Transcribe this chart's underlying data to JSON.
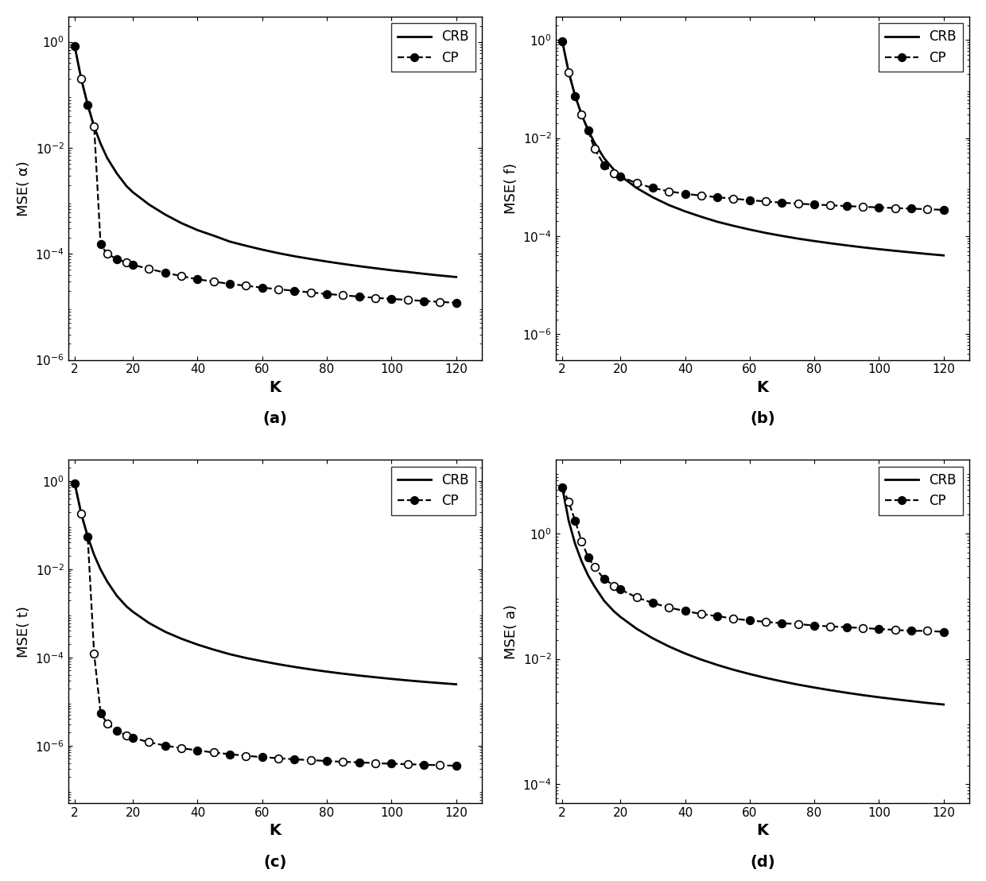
{
  "K_values": [
    2,
    4,
    6,
    8,
    10,
    12,
    15,
    18,
    20,
    25,
    30,
    35,
    40,
    45,
    50,
    55,
    60,
    65,
    70,
    75,
    80,
    85,
    90,
    95,
    100,
    105,
    110,
    115,
    120
  ],
  "subplots": [
    {
      "ylabel": "MSE( α)",
      "label": "(a)",
      "ylim_lo": 1e-06,
      "ylim_hi": 3.0,
      "yticks": [
        1e-06,
        0.0001,
        0.01,
        1.0
      ],
      "crb": [
        0.82,
        0.2,
        0.065,
        0.025,
        0.012,
        0.0065,
        0.0033,
        0.0019,
        0.00145,
        0.00085,
        0.00055,
        0.00038,
        0.00028,
        0.00022,
        0.00017,
        0.000142,
        0.00012,
        0.000103,
        9e-05,
        8e-05,
        7.15e-05,
        6.45e-05,
        5.85e-05,
        5.35e-05,
        4.9e-05,
        4.55e-05,
        4.2e-05,
        3.9e-05,
        3.65e-05
      ],
      "cp": [
        0.82,
        0.2,
        0.065,
        0.025,
        0.00015,
        0.0001,
        8e-05,
        6.8e-05,
        6.2e-05,
        5.2e-05,
        4.4e-05,
        3.8e-05,
        3.3e-05,
        3e-05,
        2.7e-05,
        2.5e-05,
        2.3e-05,
        2.15e-05,
        2e-05,
        1.87e-05,
        1.75e-05,
        1.65e-05,
        1.56e-05,
        1.48e-05,
        1.41e-05,
        1.35e-05,
        1.29e-05,
        1.24e-05,
        1.19e-05
      ]
    },
    {
      "ylabel": "MSE( f)",
      "label": "(b)",
      "ylim_lo": 3e-07,
      "ylim_hi": 3.0,
      "yticks": [
        1e-06,
        0.0001,
        0.01,
        1.0
      ],
      "crb": [
        0.95,
        0.22,
        0.072,
        0.03,
        0.0145,
        0.008,
        0.00385,
        0.00225,
        0.0017,
        0.00096,
        0.00062,
        0.00043,
        0.00032,
        0.000248,
        0.000196,
        0.000162,
        0.000136,
        0.000116,
        0.000101,
        8.88e-05,
        7.93e-05,
        7.14e-05,
        6.47e-05,
        5.9e-05,
        5.42e-05,
        5.01e-05,
        4.65e-05,
        4.32e-05,
        4.04e-05
      ],
      "cp": [
        0.95,
        0.22,
        0.072,
        0.03,
        0.0145,
        0.006,
        0.0028,
        0.0019,
        0.00165,
        0.0012,
        0.00096,
        0.00082,
        0.00073,
        0.00067,
        0.00062,
        0.00058,
        0.00054,
        0.00051,
        0.00048,
        0.00046,
        0.00044,
        0.000425,
        0.00041,
        0.000397,
        0.000385,
        0.000373,
        0.000363,
        0.000353,
        0.000343
      ]
    },
    {
      "ylabel": "MSE( t)",
      "label": "(c)",
      "ylim_lo": 5e-08,
      "ylim_hi": 3.0,
      "yticks": [
        1e-06,
        0.0001,
        0.01,
        1.0
      ],
      "crb": [
        0.88,
        0.18,
        0.055,
        0.021,
        0.0098,
        0.0053,
        0.0025,
        0.00143,
        0.00108,
        0.0006,
        0.00038,
        0.000265,
        0.000195,
        0.00015,
        0.000118,
        9.7e-05,
        8.2e-05,
        7e-05,
        6.08e-05,
        5.35e-05,
        4.76e-05,
        4.28e-05,
        3.88e-05,
        3.55e-05,
        3.26e-05,
        3.01e-05,
        2.8e-05,
        2.62e-05,
        2.46e-05
      ],
      "cp": [
        0.88,
        0.18,
        0.055,
        0.00012,
        5.5e-06,
        3.2e-06,
        2.2e-06,
        1.7e-06,
        1.5e-06,
        1.2e-06,
        1e-06,
        8.8e-07,
        7.8e-07,
        7e-07,
        6.4e-07,
        5.9e-07,
        5.5e-07,
        5.2e-07,
        4.9e-07,
        4.7e-07,
        4.5e-07,
        4.3e-07,
        4.2e-07,
        4e-07,
        3.9e-07,
        3.8e-07,
        3.7e-07,
        3.6e-07,
        3.5e-07
      ]
    },
    {
      "ylabel": "MSE( a)",
      "label": "(d)",
      "ylim_lo": 5e-05,
      "ylim_hi": 15.0,
      "yticks": [
        0.0001,
        0.01,
        1.0
      ],
      "crb": [
        5.5,
        1.6,
        0.68,
        0.36,
        0.215,
        0.143,
        0.084,
        0.0574,
        0.0468,
        0.0303,
        0.0213,
        0.0158,
        0.0122,
        0.00974,
        0.008,
        0.0067,
        0.00573,
        0.00497,
        0.00437,
        0.00388,
        0.00349,
        0.00316,
        0.00288,
        0.00264,
        0.00244,
        0.00227,
        0.00212,
        0.00198,
        0.00187
      ],
      "cp": [
        5.5,
        3.2,
        1.6,
        0.75,
        0.42,
        0.29,
        0.188,
        0.147,
        0.128,
        0.096,
        0.078,
        0.066,
        0.058,
        0.052,
        0.048,
        0.044,
        0.041,
        0.039,
        0.037,
        0.036,
        0.034,
        0.033,
        0.032,
        0.031,
        0.03,
        0.029,
        0.028,
        0.028,
        0.027
      ]
    }
  ],
  "xlabel": "K",
  "xticks": [
    2,
    20,
    40,
    60,
    80,
    100,
    120
  ],
  "bg": "#ffffff"
}
